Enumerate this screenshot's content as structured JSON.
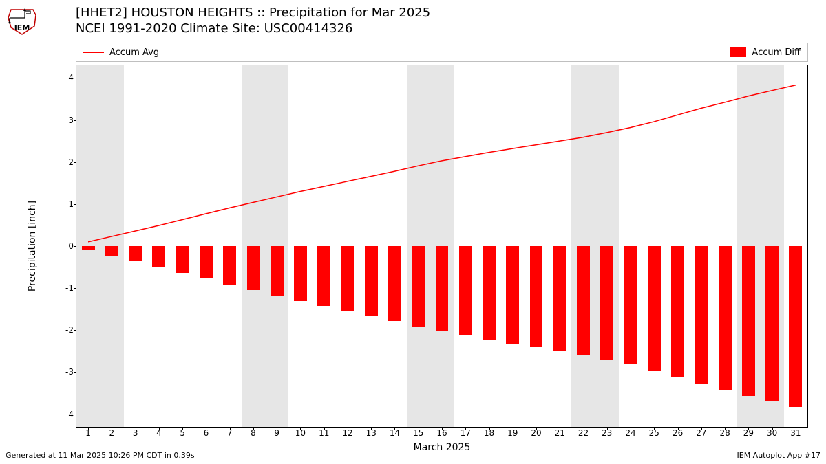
{
  "logo": {
    "text": "IEM",
    "stroke": "#c00000"
  },
  "title": {
    "line1": "[HHET2] HOUSTON HEIGHTS :: Precipitation for Mar 2025",
    "line2": "NCEI 1991-2020 Climate Site: USC00414326"
  },
  "legend": {
    "line_label": "Accum Avg",
    "bar_label": "Accum Diff"
  },
  "chart": {
    "type": "bar+line",
    "xlim": [
      0.5,
      31.5
    ],
    "ylim": [
      -4.3,
      4.3
    ],
    "yticks": [
      -4,
      -3,
      -2,
      -1,
      0,
      1,
      2,
      3,
      4
    ],
    "ylabel": "Precipitation [inch]",
    "xlabel": "March 2025",
    "days": [
      1,
      2,
      3,
      4,
      5,
      6,
      7,
      8,
      9,
      10,
      11,
      12,
      13,
      14,
      15,
      16,
      17,
      18,
      19,
      20,
      21,
      22,
      23,
      24,
      25,
      26,
      27,
      28,
      29,
      30,
      31
    ],
    "weekend_shade_days": [
      [
        1,
        2
      ],
      [
        8,
        9
      ],
      [
        15,
        16
      ],
      [
        22,
        23
      ],
      [
        29,
        30
      ]
    ],
    "shade_color": "#e6e6e6",
    "line_color": "#ff0000",
    "line_width": 1.5,
    "bar_color": "#ff0000",
    "bar_width_days": 0.55,
    "accum_avg": [
      0.1,
      0.23,
      0.36,
      0.49,
      0.63,
      0.77,
      0.91,
      1.04,
      1.17,
      1.3,
      1.42,
      1.54,
      1.66,
      1.78,
      1.91,
      2.03,
      2.13,
      2.23,
      2.32,
      2.41,
      2.5,
      2.59,
      2.7,
      2.82,
      2.96,
      3.12,
      3.28,
      3.42,
      3.57,
      3.7,
      3.83
    ],
    "accum_diff": [
      -0.1,
      -0.23,
      -0.36,
      -0.49,
      -0.63,
      -0.77,
      -0.91,
      -1.04,
      -1.17,
      -1.3,
      -1.42,
      -1.54,
      -1.66,
      -1.78,
      -1.91,
      -2.03,
      -2.13,
      -2.23,
      -2.32,
      -2.41,
      -2.5,
      -2.59,
      -2.7,
      -2.82,
      -2.96,
      -3.12,
      -3.28,
      -3.42,
      -3.57,
      -3.7,
      -3.83
    ],
    "background": "#ffffff",
    "axis_color": "#000000",
    "tick_fontsize": 12,
    "label_fontsize": 14,
    "title_fontsize": 18
  },
  "footer": {
    "left": "Generated at 11 Mar 2025 10:26 PM CDT in 0.39s",
    "right": "IEM Autoplot App #17"
  }
}
